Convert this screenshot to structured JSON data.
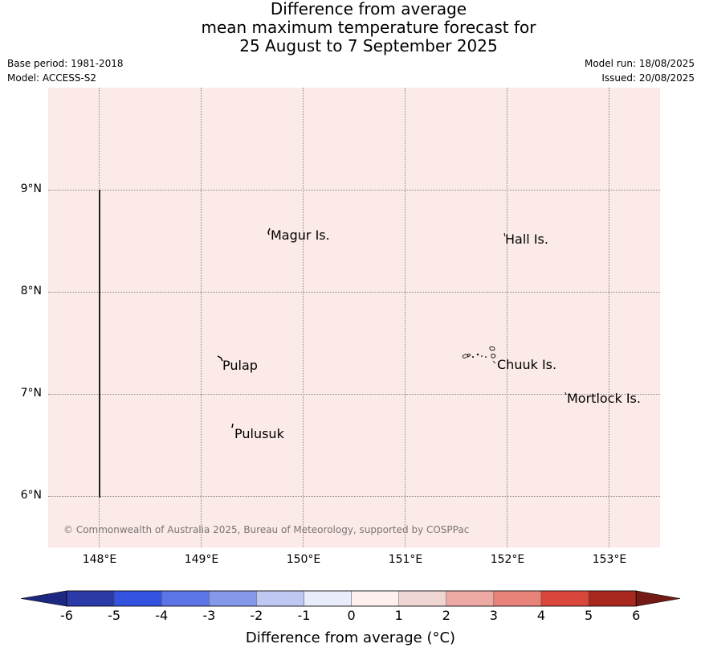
{
  "title": {
    "line1": "Difference from average",
    "line2": "mean maximum temperature forecast for",
    "line3": "25 August to 7 September 2025"
  },
  "meta": {
    "base_period": "Base period: 1981-2018",
    "model": "Model: ACCESS-S2",
    "model_run": "Model run: 18/08/2025",
    "issued": "Issued: 20/08/2025"
  },
  "map": {
    "fill_color": "#fbeae7",
    "anomaly_bin": "0 to 1",
    "lat_labels": [
      "9°N",
      "8°N",
      "7°N",
      "6°N"
    ],
    "lon_labels": [
      "148°E",
      "149°E",
      "150°E",
      "151°E",
      "152°E",
      "153°E"
    ],
    "places": [
      "Magur Is.",
      "Hall Is.",
      "Pulap",
      "Chuuk Is.",
      "Mortlock Is.",
      "Pulusuk"
    ],
    "credit": "© Commonwealth of Australia 2025, Bureau of Meteorology, supported by COSPPac"
  },
  "colorbar": {
    "ticks": [
      "-6",
      "-5",
      "-4",
      "-3",
      "-2",
      "-1",
      "0",
      "1",
      "2",
      "3",
      "4",
      "5",
      "6"
    ],
    "colors": [
      "#2a3aa6",
      "#3352e0",
      "#5c75e6",
      "#8599eb",
      "#bfc8f2",
      "#e9ecfa",
      "#fdf0ee",
      "#efd6d3",
      "#eda9a3",
      "#e8837a",
      "#d9463b",
      "#a8281f"
    ],
    "low_extend_color": "#1c2880",
    "high_extend_color": "#731a14",
    "label": "Difference from average (°C)"
  }
}
